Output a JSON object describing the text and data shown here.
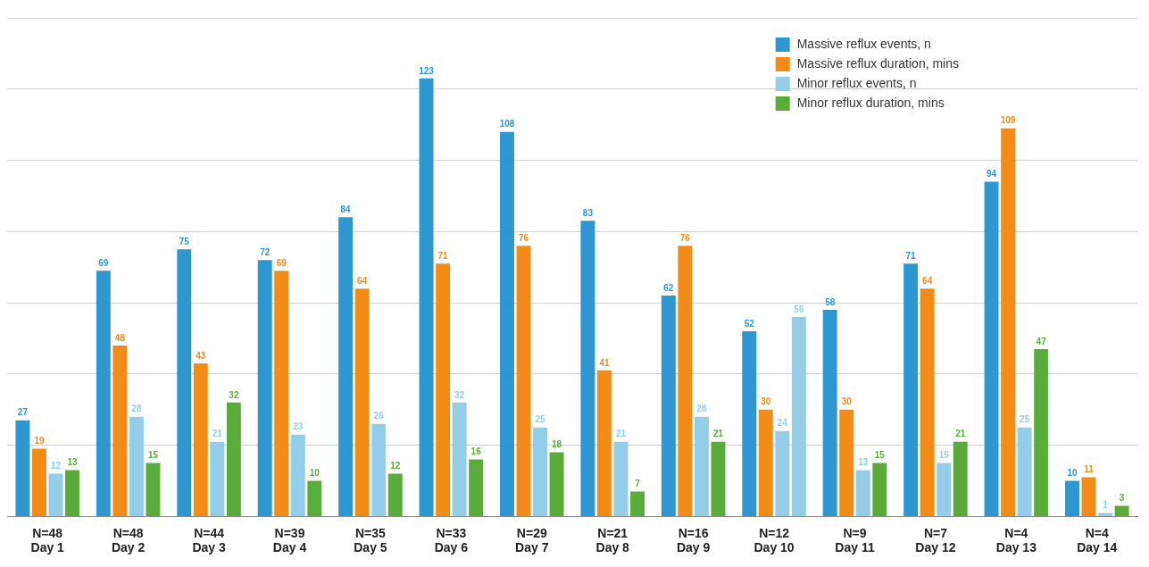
{
  "chart_data": {
    "type": "bar",
    "categories": [
      "N=48\nDay 1",
      "N=48\nDay 2",
      "N=44\nDay 3",
      "N=39\nDay 4",
      "N=35\nDay 5",
      "N=33\nDay 6",
      "N=29\nDay 7",
      "N=21\nDay 8",
      "N=16\nDay 9",
      "N=12\nDay 10",
      "N=9\nDay 11",
      "N=7\nDay 12",
      "N=4\nDay 13",
      "N=4\nDay 14"
    ],
    "series": [
      {
        "name": "Massive reflux events, n",
        "color": "#2e96d0",
        "values": [
          27,
          69,
          75,
          72,
          84,
          123,
          108,
          83,
          62,
          52,
          58,
          71,
          94,
          10
        ]
      },
      {
        "name": "Massive reflux duration, mins",
        "color": "#f28c16",
        "values": [
          19,
          48,
          43,
          69,
          64,
          71,
          76,
          41,
          76,
          30,
          30,
          64,
          109,
          11
        ]
      },
      {
        "name": "Minor reflux events, n",
        "color": "#93cde8",
        "values": [
          12,
          28,
          21,
          23,
          26,
          32,
          25,
          21,
          28,
          24,
          13,
          15,
          25,
          1
        ]
      },
      {
        "name": "Minor reflux duration, mins",
        "color": "#5aac3a",
        "colors": [
          "#5aac3a",
          "#5aac3a",
          "#5aac3a",
          "#5aac3a",
          "#5aac3a",
          "#5aac3a",
          "#5aac3a",
          "#5aac3a",
          "#5aac3a",
          "#93cde8",
          "#5aac3a",
          "#5aac3a",
          "#5aac3a",
          "#5aac3a"
        ],
        "values": [
          13,
          15,
          32,
          10,
          12,
          16,
          18,
          7,
          21,
          56,
          15,
          21,
          47,
          3
        ]
      }
    ],
    "ylim": [
      0,
      140
    ],
    "yticks": [
      {
        "value": 0,
        "label": null
      },
      {
        "value": 20,
        "label": null
      },
      {
        "value": 40,
        "label": null
      },
      {
        "value": 60,
        "label": null
      },
      {
        "value": 80,
        "label": null
      },
      {
        "value": 100,
        "label": null
      },
      {
        "value": 120,
        "label": null
      },
      {
        "value": 140,
        "label": null
      }
    ],
    "tick_labels": "x",
    "grid": "y",
    "legend": "top right",
    "data_labels": true
  }
}
